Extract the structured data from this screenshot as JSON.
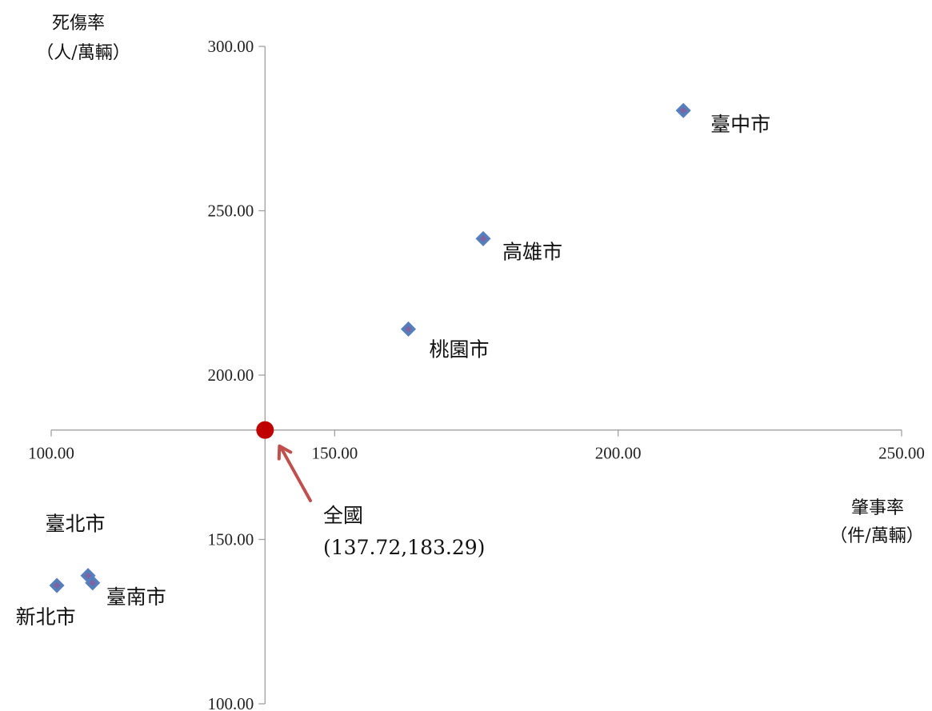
{
  "chart_data": {
    "type": "scatter",
    "xlabel": [
      "肇事率",
      "（件/萬輛）"
    ],
    "ylabel": [
      "死傷率",
      "（人/萬輛）"
    ],
    "xlim": [
      100,
      250
    ],
    "ylim": [
      100,
      300
    ],
    "x_ticks": [
      "100.00",
      "150.00",
      "200.00",
      "250.00"
    ],
    "y_ticks": [
      "100.00",
      "150.00",
      "200.00",
      "250.00",
      "300.00"
    ],
    "axes_cross": [
      137.72,
      183.29
    ],
    "grid": false,
    "points": [
      {
        "label": "臺中市",
        "x": 211.5,
        "y": 280.5
      },
      {
        "label": "高雄市",
        "x": 176.2,
        "y": 241.5
      },
      {
        "label": "桃園市",
        "x": 163.0,
        "y": 214.0
      },
      {
        "label": "臺北市",
        "x": 106.5,
        "y": 139.0
      },
      {
        "label": "臺南市",
        "x": 107.3,
        "y": 136.8
      },
      {
        "label": "新北市",
        "x": 101.0,
        "y": 136.0
      }
    ],
    "national": {
      "x": 137.72,
      "y": 183.29,
      "label": "全國",
      "value_label": "(137.72,183.29)"
    },
    "colors": {
      "marker_fill": "#4f81bd",
      "marker_inner": "#8064a2",
      "marker_edge": "#5b7fbf",
      "national_point": "#c00000",
      "arrow": "#c0504d",
      "axis": "#a0a0a0"
    }
  }
}
